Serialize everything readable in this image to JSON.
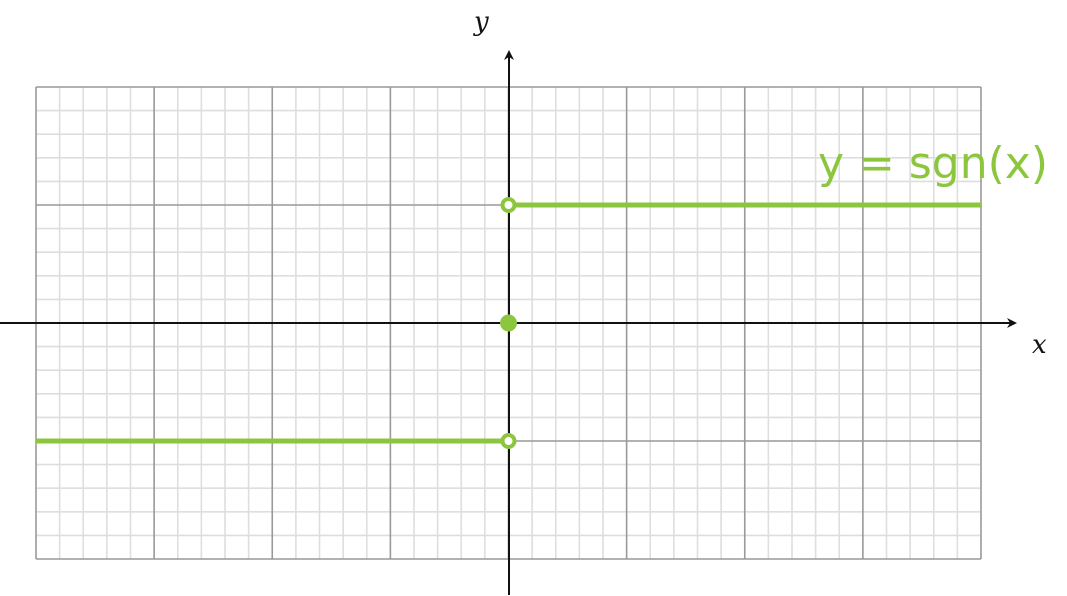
{
  "chart_data": {
    "type": "line",
    "title": "",
    "xlabel": "x",
    "ylabel": "y",
    "xlim": [
      -4,
      4
    ],
    "ylim": [
      -2,
      2
    ],
    "grid": true,
    "major_grid_step": 1,
    "minor_grid_subdivisions": 5,
    "tick_labels_shown": false,
    "annotation": "y = sgn(x)",
    "color": "#8cc63f",
    "series": [
      {
        "segment": "negative",
        "x": [
          -4,
          0
        ],
        "y": [
          -1,
          -1
        ]
      },
      {
        "segment": "positive",
        "x": [
          0,
          4
        ],
        "y": [
          1,
          1
        ]
      }
    ],
    "points": [
      {
        "x": 0,
        "y": 1,
        "style": "open"
      },
      {
        "x": 0,
        "y": -1,
        "style": "open"
      },
      {
        "x": 0,
        "y": 0,
        "style": "filled"
      }
    ]
  }
}
